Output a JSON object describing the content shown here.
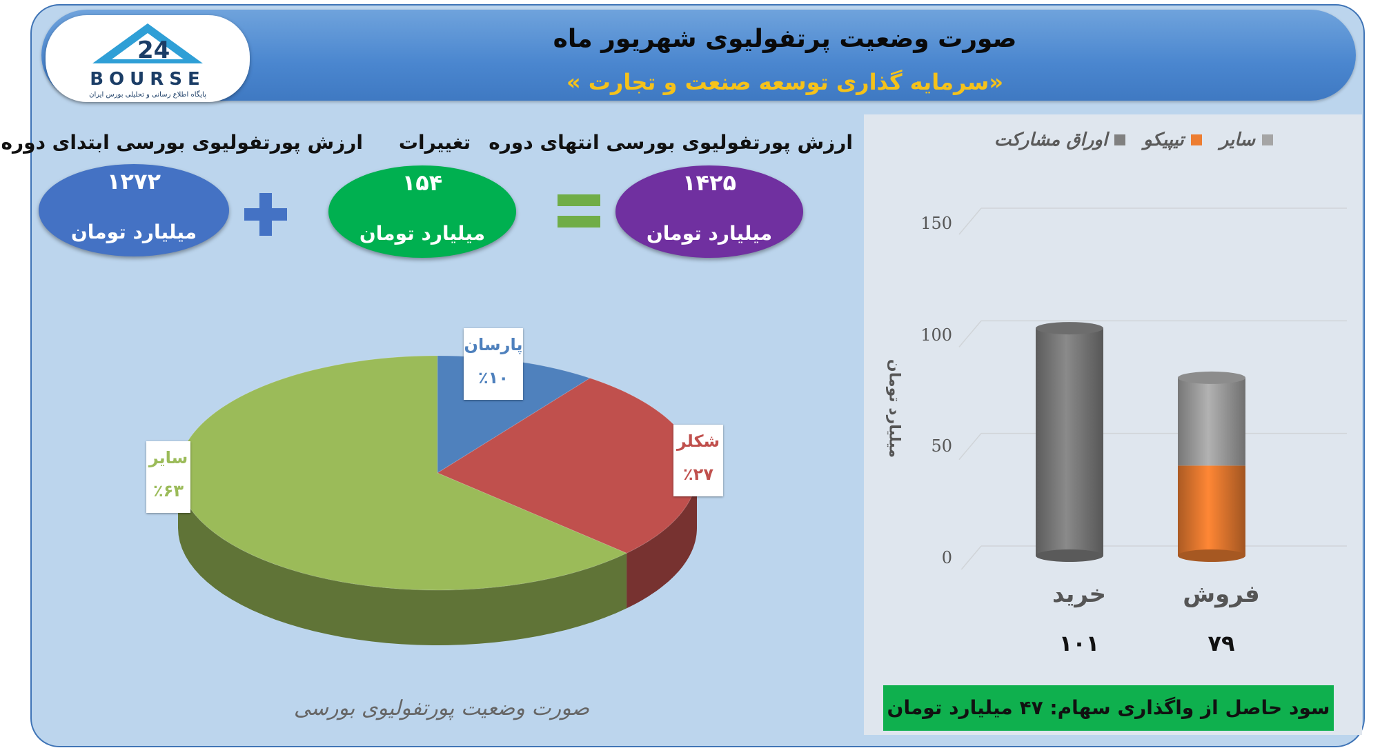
{
  "header": {
    "title": "صورت وضعیت پرتفولیوی شهریور ماه",
    "subtitle": "«سرمایه گذاری توسعه صنعت و تجارت »"
  },
  "logo": {
    "text": "BOURSE",
    "tagline": "پایگاه اطلاع رسانی و تحلیلی بورس ایران"
  },
  "summary": {
    "start": {
      "label": "ارزش پورتفولیوی بورسی ابتدای دوره",
      "value": "۱۲۷۲",
      "unit": "میلیارد تومان",
      "color": "#4472c4"
    },
    "change": {
      "label": "تغییرات",
      "value": "۱۵۴",
      "unit": "میلیارد تومان",
      "color": "#00b050"
    },
    "end": {
      "label": "ارزش پورتفولیوی بورسی انتهای دوره",
      "value": "۱۴۲۵",
      "unit": "میلیارد تومان",
      "color": "#7030a0"
    },
    "plus_color": "#4472c4",
    "equals_color": "#70ad47"
  },
  "pie_caption": "صورت وضعیت پورتفولیوی بورسی",
  "bar_caption": {
    "profit": "سود حاصل از واگذاری سهام: ۴۷ میلیارد تومان"
  },
  "chart_data": [
    {
      "type": "pie",
      "title": "صورت وضعیت پورتفولیوی بورسی",
      "slices": [
        {
          "name": "پارسان",
          "value": 10,
          "label": "٪۱۰",
          "color": "#4f81bd"
        },
        {
          "name": "شکلر",
          "value": 27,
          "label": "٪۲۷",
          "color": "#c0504d"
        },
        {
          "name": "سایر",
          "value": 63,
          "label": "٪۶۳",
          "color": "#9bbb59"
        }
      ]
    },
    {
      "type": "bar",
      "stacked": true,
      "ylabel": "میلیارد تومان",
      "ylim": [
        0,
        150
      ],
      "yticks": [
        0,
        50,
        100,
        150
      ],
      "categories": [
        "خرید",
        "فروش"
      ],
      "category_totals": [
        "۱۰۱",
        "۷۹"
      ],
      "legend": [
        "سایر",
        "تیپیکو",
        "اوراق مشارکت"
      ],
      "legend_position": "top",
      "series": [
        {
          "name": "اوراق مشارکت",
          "values": [
            101,
            0
          ],
          "color": "#808080"
        },
        {
          "name": "تیپیکو",
          "values": [
            0,
            40
          ],
          "color": "#ed7d31"
        },
        {
          "name": "سایر",
          "values": [
            0,
            39
          ],
          "color": "#a5a5a5"
        }
      ]
    }
  ]
}
